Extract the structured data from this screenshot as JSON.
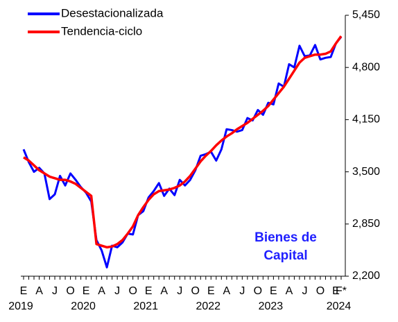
{
  "chart_data": {
    "type": "line",
    "categories": [
      "E",
      null,
      null,
      "A",
      null,
      null,
      "J",
      null,
      null,
      "O",
      null,
      null,
      "E",
      null,
      null,
      "A",
      null,
      null,
      "J",
      null,
      null,
      "O",
      null,
      null,
      "E",
      null,
      null,
      "A",
      null,
      null,
      "J",
      null,
      null,
      "O",
      null,
      null,
      "E",
      null,
      null,
      "A",
      null,
      null,
      "J",
      null,
      null,
      "O",
      null,
      null,
      "E",
      null,
      null,
      "A",
      null,
      null,
      "J",
      null,
      null,
      "O",
      null,
      null,
      "E",
      "F*"
    ],
    "x_groups": [
      "2019",
      "2020",
      "2021",
      "2022",
      "2023",
      "2024"
    ],
    "series": [
      {
        "name": "Desestacionalizada",
        "color": "#0000ff",
        "values": [
          3780,
          3620,
          3500,
          3550,
          3480,
          3160,
          3220,
          3450,
          3330,
          3480,
          3400,
          3310,
          3240,
          3130,
          2650,
          2520,
          2310,
          2580,
          2560,
          2620,
          2730,
          2720,
          2960,
          3010,
          3180,
          3260,
          3360,
          3200,
          3290,
          3210,
          3400,
          3330,
          3400,
          3520,
          3700,
          3720,
          3750,
          3640,
          3780,
          4030,
          4020,
          4000,
          4020,
          4170,
          4140,
          4270,
          4210,
          4360,
          4340,
          4600,
          4560,
          4840,
          4800,
          5070,
          4940,
          4950,
          5080,
          4900,
          4920,
          4930,
          5100,
          5180
        ]
      },
      {
        "name": "Tendencia-ciclo",
        "color": "#ff0000",
        "values": [
          3680,
          3640,
          3580,
          3520,
          3480,
          3440,
          3420,
          3400,
          3400,
          3380,
          3350,
          3300,
          3250,
          3200,
          2600,
          2580,
          2560,
          2570,
          2600,
          2650,
          2730,
          2820,
          2960,
          3060,
          3150,
          3220,
          3260,
          3270,
          3280,
          3300,
          3330,
          3380,
          3450,
          3540,
          3630,
          3700,
          3760,
          3830,
          3890,
          3940,
          3980,
          4030,
          4070,
          4110,
          4160,
          4210,
          4260,
          4320,
          4400,
          4480,
          4560,
          4660,
          4760,
          4860,
          4920,
          4940,
          4960,
          4960,
          4970,
          5000,
          5100,
          5190
        ]
      }
    ],
    "ylim": [
      2200,
      5450
    ],
    "yticks": [
      {
        "value": 2200,
        "label": "2,200"
      },
      {
        "value": 2850,
        "label": "2,850"
      },
      {
        "value": 3500,
        "label": "3,500"
      },
      {
        "value": 4150,
        "label": "4,150"
      },
      {
        "value": 4800,
        "label": "4,800"
      },
      {
        "value": 5450,
        "label": "5,450"
      }
    ],
    "annotation": [
      "Bienes de",
      "Capital"
    ],
    "legend": "upper left"
  }
}
